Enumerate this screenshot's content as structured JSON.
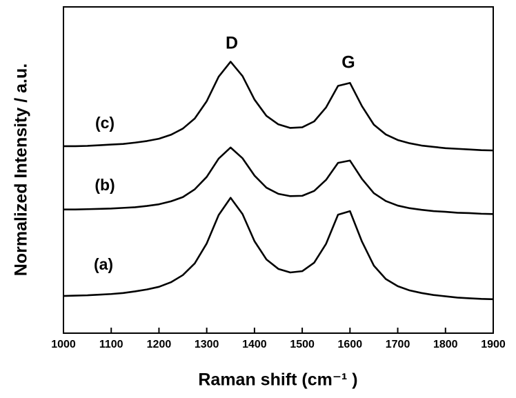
{
  "chart_data": {
    "type": "line",
    "x_label": "Raman shift (cm⁻¹ )",
    "y_label": "Normalized Intensity / a.u.",
    "x": [
      1000,
      1025,
      1050,
      1075,
      1100,
      1125,
      1150,
      1175,
      1200,
      1225,
      1250,
      1275,
      1300,
      1325,
      1350,
      1375,
      1400,
      1425,
      1450,
      1475,
      1500,
      1525,
      1550,
      1575,
      1600,
      1625,
      1650,
      1675,
      1700,
      1725,
      1750,
      1775,
      1800,
      1825,
      1850,
      1875,
      1900
    ],
    "series": [
      {
        "name": "(c)",
        "color": "#000000",
        "values": [
          57.3,
          57.3,
          57.4,
          57.6,
          57.8,
          58.0,
          58.4,
          58.9,
          59.6,
          60.8,
          62.7,
          65.8,
          71.1,
          78.6,
          83.2,
          78.8,
          71.6,
          66.6,
          64.0,
          62.9,
          63.1,
          64.9,
          69.2,
          75.8,
          76.7,
          69.6,
          63.9,
          60.9,
          59.2,
          58.2,
          57.5,
          57.1,
          56.7,
          56.5,
          56.3,
          56.1,
          56.0
        ]
      },
      {
        "name": "(b)",
        "color": "#000000",
        "values": [
          37.9,
          37.9,
          38.0,
          38.1,
          38.2,
          38.4,
          38.6,
          39.0,
          39.5,
          40.4,
          41.7,
          44.1,
          47.9,
          53.5,
          56.9,
          53.6,
          48.3,
          44.6,
          42.7,
          42.0,
          42.1,
          43.6,
          47.0,
          52.2,
          52.9,
          47.3,
          42.9,
          40.5,
          39.1,
          38.3,
          37.8,
          37.4,
          37.2,
          36.9,
          36.8,
          36.6,
          36.5
        ]
      },
      {
        "name": "(a)",
        "color": "#000000",
        "values": [
          11.4,
          11.5,
          11.6,
          11.8,
          12.0,
          12.3,
          12.8,
          13.4,
          14.2,
          15.6,
          17.8,
          21.4,
          27.5,
          36.2,
          41.5,
          36.5,
          28.2,
          22.6,
          19.7,
          18.6,
          19.0,
          21.6,
          27.4,
          36.3,
          37.4,
          28.1,
          20.7,
          16.6,
          14.4,
          13.1,
          12.3,
          11.7,
          11.3,
          10.9,
          10.7,
          10.5,
          10.4
        ]
      }
    ],
    "annotations": [
      "D",
      "G"
    ],
    "xlim": [
      1000,
      1900
    ],
    "xticks": [
      1000,
      1100,
      1200,
      1300,
      1400,
      1500,
      1600,
      1700,
      1800,
      1900
    ],
    "ylim": [
      0,
      100
    ],
    "grid": false
  }
}
